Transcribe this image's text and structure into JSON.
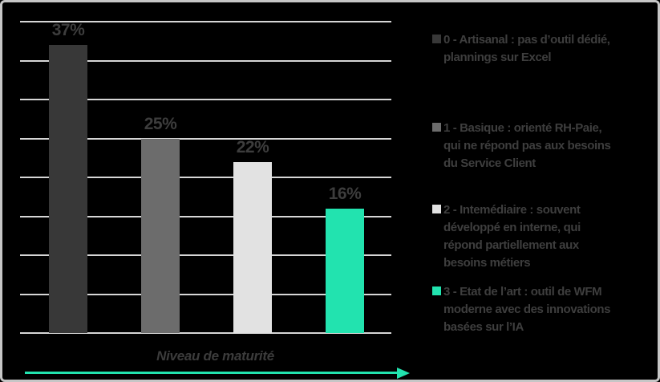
{
  "chart_data": {
    "type": "bar",
    "categories": [
      "0 - Artisanal",
      "1 - Basique",
      "2 - Intemédiaire",
      "3 - Etat de l’art"
    ],
    "values": [
      37,
      25,
      22,
      16
    ],
    "value_labels": [
      "37%",
      "25%",
      "22%",
      "16%"
    ],
    "bar_colors": [
      "#383838",
      "#6C6C6C",
      "#E2E2E2",
      "#22E3AF"
    ],
    "ylim": [
      0,
      40
    ],
    "gridline_step": 5,
    "grid": true,
    "legend_position": "right",
    "xlabel": "Niveau de maturité",
    "legend": [
      {
        "color": "#383838",
        "marker": "square",
        "lines": [
          "0 - Artisanal : pas d’outil dédié,",
          "plannings sur Excel"
        ]
      },
      {
        "color": "#6C6C6C",
        "marker": "square",
        "lines": [
          "1 - Basique : orienté RH-Paie,",
          "qui ne répond pas aux besoins",
          "du Service Client"
        ]
      },
      {
        "color": "#E2E2E2",
        "marker": "square",
        "lines": [
          "2 - Intemédiaire : souvent",
          "développé en interne, qui",
          "répond partiellement aux",
          "besoins métiers"
        ]
      },
      {
        "color": "#22E3AF",
        "marker": "square",
        "lines": [
          "3 - Etat de l’art : outil de WFM",
          "moderne avec des innovations",
          "basées sur l’IA"
        ]
      }
    ]
  },
  "colors": {
    "background": "#000000",
    "frame_border": "#C6C6C6",
    "gridline": "#D6D6D6",
    "text": "#3D3D3D",
    "arrow": "#22E3AF"
  }
}
